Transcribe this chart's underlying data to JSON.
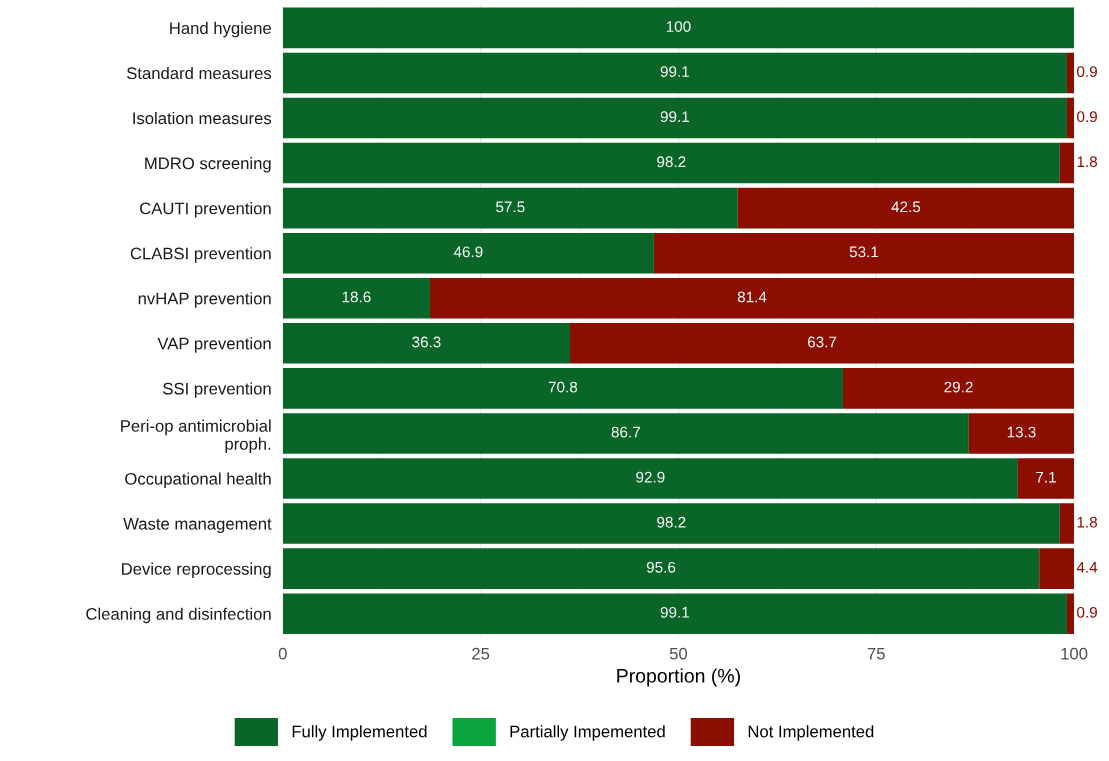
{
  "chart_data": {
    "type": "bar",
    "orientation": "horizontal",
    "stacked": true,
    "xlabel": "Proportion (%)",
    "categories": [
      "Hand hygiene",
      "Standard measures",
      "Isolation measures",
      "MDRO screening",
      "CAUTI prevention",
      "CLABSI prevention",
      "nvHAP prevention",
      "VAP prevention",
      "SSI prevention",
      "Peri-op antimicrobial\nproph.",
      "Occupational health",
      "Waste management",
      "Device reprocessing",
      "Cleaning and disinfection"
    ],
    "series": [
      {
        "name": "Fully Implemented",
        "color": "#0a6628",
        "values": [
          100,
          99.1,
          99.1,
          98.2,
          57.5,
          46.9,
          18.6,
          36.3,
          70.8,
          86.7,
          92.9,
          98.2,
          95.6,
          99.1
        ],
        "value_labels": [
          "100",
          "99.1",
          "99.1",
          "98.2",
          "57.5",
          "46.9",
          "18.6",
          "36.3",
          "70.8",
          "86.7",
          "92.9",
          "98.2",
          "95.6",
          "99.1"
        ]
      },
      {
        "name": "Partially Impemented",
        "color": "#0ba53b",
        "values": [
          0,
          0,
          0,
          0,
          0,
          0,
          0,
          0,
          0,
          0,
          0,
          0,
          0,
          0
        ],
        "value_labels": [
          null,
          null,
          null,
          null,
          null,
          null,
          null,
          null,
          null,
          null,
          null,
          null,
          null,
          null
        ]
      },
      {
        "name": "Not Implemented",
        "color": "#8b0e00",
        "values": [
          0,
          0.9,
          0.9,
          1.8,
          42.5,
          53.1,
          81.4,
          63.7,
          29.2,
          13.3,
          7.1,
          1.8,
          4.4,
          0.9
        ],
        "value_labels": [
          null,
          "0.9",
          "0.9",
          "1.8",
          "42.5",
          "53.1",
          "81.4",
          "63.7",
          "29.2",
          "13.3",
          "7.1",
          "1.8",
          "4.4",
          "0.9"
        ]
      }
    ],
    "xlim": [
      0,
      100
    ],
    "xticks": [
      0,
      25,
      50,
      75,
      100
    ],
    "grid": true,
    "legend": "bottom"
  }
}
